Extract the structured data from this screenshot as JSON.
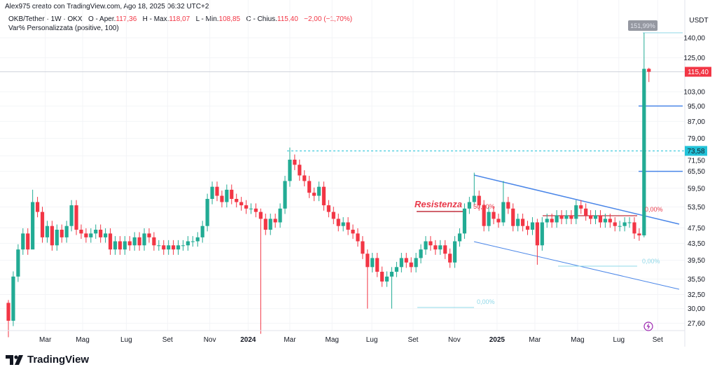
{
  "header": {
    "author_line": "Alex975 creato con TradingView.com, Ago 18, 2025 06:32 UTC+2",
    "symbol": "OKB/Tether · 1W · OKX",
    "open_label": "O - Aper.",
    "open": "117,36",
    "high_label": "H - Max.",
    "high": "118,07",
    "low_label": "L - Min.",
    "low": "108,85",
    "close_label": "C - Chius.",
    "close": "115,40",
    "change": "−2,00 (−1,70%)",
    "indicator": "Var% Personalizzata (positive, 100)"
  },
  "logo": {
    "text": "TradingView"
  },
  "colors": {
    "up": "#22ab94",
    "down": "#f23645",
    "trend": "#4a86e8",
    "fib": "#8fd8e8",
    "accent_cyan": "#22c2d8"
  },
  "chart_data": {
    "type": "candlestick",
    "currency": "USDT",
    "scale": "log",
    "ylim": [
      26,
      150
    ],
    "y_ticks": [
      "140,00",
      "125,00",
      "103,00",
      "95,00",
      "87,00",
      "79,00",
      "71,50",
      "65,50",
      "59,50",
      "53,50",
      "47,50",
      "43,50",
      "39,50",
      "35,50",
      "32,50",
      "30,00",
      "27,60"
    ],
    "y_tick_values": [
      140,
      125,
      103,
      95,
      87,
      79,
      71.5,
      65.5,
      59.5,
      53.5,
      47.5,
      43.5,
      39.5,
      35.5,
      32.5,
      30,
      27.6
    ],
    "x_ticks": [
      "Mar",
      "Mag",
      "Lug",
      "Set",
      "Nov",
      "2024",
      "Mar",
      "Mag",
      "Lug",
      "Set",
      "Nov",
      "2025",
      "Mar",
      "Mag",
      "Lug",
      "Set"
    ],
    "x_tick_week_index": [
      7.6,
      15.3,
      24.3,
      32.8,
      41.5,
      49.4,
      58,
      66.7,
      74.9,
      83.4,
      91.9,
      100.7,
      108.5,
      117.3,
      125.8,
      133.8
    ],
    "first_open": 31,
    "closes": [
      28,
      36,
      42,
      46,
      42,
      55,
      52,
      45,
      48,
      43,
      47,
      45,
      48,
      54,
      47,
      46,
      45,
      46,
      47,
      45,
      46,
      42,
      44,
      42,
      44,
      43,
      45,
      43,
      46,
      45,
      43,
      43,
      42,
      43,
      42,
      43,
      43,
      44,
      44,
      45,
      48,
      56,
      60,
      57,
      55,
      59,
      56,
      55,
      54,
      53,
      53,
      52,
      50,
      47,
      50,
      49,
      53,
      62,
      70,
      68,
      64,
      62,
      58,
      57,
      60,
      54,
      52,
      50,
      48,
      49,
      47,
      46,
      44,
      41,
      38,
      40,
      37,
      35,
      36,
      37,
      38,
      40,
      39,
      38,
      40,
      42,
      44,
      43,
      42,
      43,
      41,
      39,
      44,
      46,
      53,
      55,
      57,
      54,
      48,
      52,
      50,
      49,
      55,
      53,
      48,
      50,
      48,
      47,
      49,
      43,
      49,
      50,
      49,
      51,
      50,
      51,
      50,
      54,
      53,
      51,
      50,
      51,
      49,
      50,
      49,
      48,
      48,
      49,
      49,
      46,
      45.5,
      117.36,
      115.4
    ],
    "extremes": {
      "0": [
        31.5,
        25.5
      ],
      "5": [
        59,
        44
      ],
      "52": [
        53,
        26
      ],
      "58": [
        75,
        60
      ],
      "74": [
        42,
        30
      ],
      "79": [
        38,
        30
      ],
      "96": [
        65,
        54
      ],
      "102": [
        62,
        48
      ],
      "109": [
        50,
        38.5
      ],
      "131": [
        144,
        45
      ],
      "132": [
        118.07,
        108.85
      ]
    },
    "last_price_label": "115,40",
    "marked_level_label": "73,58",
    "marked_level": 73.58,
    "percent_box": "151,99%",
    "annotations": {
      "resistance": "Resistenza",
      "pct_resistance": "50,00%",
      "pct_breakout": "0,00%",
      "pct_low1": "0,00%",
      "pct_low2": "0,00%"
    },
    "levels": {
      "target1": 95,
      "target2": 65.5
    }
  }
}
